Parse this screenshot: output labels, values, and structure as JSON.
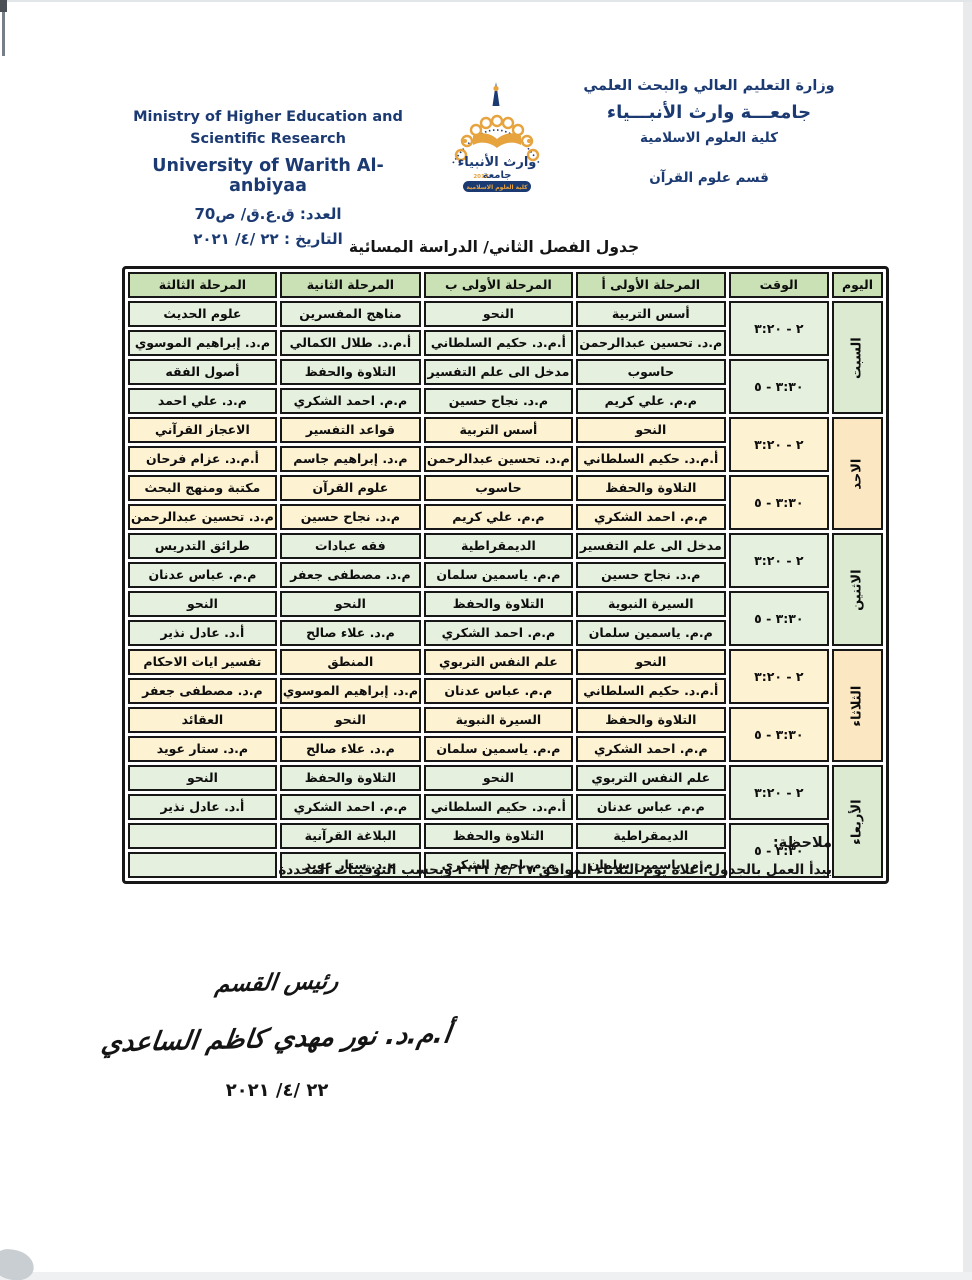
{
  "palette": {
    "navy": "#1c3a72",
    "gold": "#e6a33e",
    "border": "#171717",
    "green_header": "#c9e1b4",
    "green_cell": "#e6f0de",
    "green_day": "#dcead2",
    "cream_cell": "#fdf2d2",
    "cream_day": "#fbe8c2"
  },
  "header": {
    "ministry_ar": "وزارة التعليم العالي والبحث العلمي",
    "university_ar": "جامعـــة وارث الأنبـــياء",
    "college_ar": "كلية العلوم الاسلامية",
    "department_ar": "قسم علوم القرآن",
    "ministry_en_line1": "Ministry of Higher Education and",
    "ministry_en_line2": "Scientific Research",
    "university_en": "University of Warith Al- anbiyaa",
    "number_line": "العدد: ق.ع.ق/ ص70",
    "date_line": "التاريخ : ٢٢ /٤/ ٢٠٢١"
  },
  "logo": {
    "name_ar": "وارث الأنبياء",
    "word_university": "جامعة",
    "year": "2017",
    "ribbon": "كلية العلوم الاسلامية"
  },
  "title": "جدول الفصل الثاني/ الدراسة المسائية",
  "table": {
    "headers": [
      "اليوم",
      "الوقت",
      "المرحلة الأولى أ",
      "المرحلة الأولى ب",
      "المرحلة الثانية",
      "المرحلة الثالثة"
    ],
    "days": [
      {
        "name": "السبت",
        "tone": "g",
        "slots": [
          {
            "time": "٢ - ٣:٢٠",
            "cells": [
              {
                "subject": "أسس التربية",
                "teacher": "م.د. تحسين عبدالرحمن"
              },
              {
                "subject": "النحو",
                "teacher": "أ.م.د. حكيم السلطاني"
              },
              {
                "subject": "مناهج المفسرين",
                "teacher": "أ.م.د. طلال الكمالي"
              },
              {
                "subject": "علوم الحديث",
                "teacher": "م.د. إبراهيم الموسوي"
              }
            ]
          },
          {
            "time": "٣:٣٠ - ٥",
            "cells": [
              {
                "subject": "حاسوب",
                "teacher": "م.م. علي كريم"
              },
              {
                "subject": "مدخل الى علم التفسير",
                "teacher": "م.د. نجاح حسين"
              },
              {
                "subject": "التلاوة والحفظ",
                "teacher": "م.م. احمد الشكري"
              },
              {
                "subject": "أصول الفقه",
                "teacher": "م.د. علي احمد"
              }
            ]
          }
        ]
      },
      {
        "name": "الاحد",
        "tone": "c",
        "slots": [
          {
            "time": "٢ - ٣:٢٠",
            "cells": [
              {
                "subject": "النحو",
                "teacher": "أ.م.د. حكيم السلطاني"
              },
              {
                "subject": "أسس التربية",
                "teacher": "م.د. تحسين عبدالرحمن"
              },
              {
                "subject": "قواعد التفسير",
                "teacher": "م.د. إبراهيم جاسم"
              },
              {
                "subject": "الاعجاز القرآني",
                "teacher": "أ.م.د. عزام فرحان"
              }
            ]
          },
          {
            "time": "٣:٣٠ - ٥",
            "cells": [
              {
                "subject": "التلاوة والحفظ",
                "teacher": "م.م. احمد الشكري"
              },
              {
                "subject": "حاسوب",
                "teacher": "م.م. علي كريم"
              },
              {
                "subject": "علوم القرآن",
                "teacher": "م.د. نجاح حسين"
              },
              {
                "subject": "مكتبة ومنهج البحث",
                "teacher": "م.د. تحسين عبدالرحمن"
              }
            ]
          }
        ]
      },
      {
        "name": "الاثنين",
        "tone": "g",
        "slots": [
          {
            "time": "٢ - ٣:٢٠",
            "cells": [
              {
                "subject": "مدخل الى علم التفسير",
                "teacher": "م.د. نجاح حسين"
              },
              {
                "subject": "الديمقراطية",
                "teacher": "م.م. ياسمين سلمان"
              },
              {
                "subject": "فقه عبادات",
                "teacher": "م.د. مصطفى جعفر"
              },
              {
                "subject": "طرائق التدريس",
                "teacher": "م.م. عباس عدنان"
              }
            ]
          },
          {
            "time": "٣:٣٠ - ٥",
            "cells": [
              {
                "subject": "السيرة النبوية",
                "teacher": "م.م. ياسمين سلمان"
              },
              {
                "subject": "التلاوة والحفظ",
                "teacher": "م.م. احمد الشكري"
              },
              {
                "subject": "النحو",
                "teacher": "م.د. علاء صالح"
              },
              {
                "subject": "النحو",
                "teacher": "أ.د. عادل نذير"
              }
            ]
          }
        ]
      },
      {
        "name": "الثلاثاء",
        "tone": "c",
        "slots": [
          {
            "time": "٢ - ٣:٢٠",
            "cells": [
              {
                "subject": "النحو",
                "teacher": "أ.م.د. حكيم السلطاني"
              },
              {
                "subject": "علم النفس التربوي",
                "teacher": "م.م. عباس عدنان"
              },
              {
                "subject": "المنطق",
                "teacher": "م.د. إبراهيم الموسوي"
              },
              {
                "subject": "تفسير ايات الاحكام",
                "teacher": "م.د. مصطفى جعفر"
              }
            ]
          },
          {
            "time": "٣:٣٠ - ٥",
            "cells": [
              {
                "subject": "التلاوة والحفظ",
                "teacher": "م.م. احمد الشكري"
              },
              {
                "subject": "السيرة النبوية",
                "teacher": "م.م. ياسمين سلمان"
              },
              {
                "subject": "النحو",
                "teacher": "م.د. علاء صالح"
              },
              {
                "subject": "العقائد",
                "teacher": "م.د. ستار عويد"
              }
            ]
          }
        ]
      },
      {
        "name": "الأربعاء",
        "tone": "g",
        "slots": [
          {
            "time": "٢ - ٣:٢٠",
            "cells": [
              {
                "subject": "علم النفس التربوي",
                "teacher": "م.م. عباس عدنان"
              },
              {
                "subject": "النحو",
                "teacher": "أ.م.د. حكيم السلطاني"
              },
              {
                "subject": "التلاوة والحفظ",
                "teacher": "م.م. احمد الشكري"
              },
              {
                "subject": "النحو",
                "teacher": "أ.د. عادل نذير"
              }
            ]
          },
          {
            "time": "٣:٣٠ - ٥",
            "cells": [
              {
                "subject": "الديمقراطية",
                "teacher": "م.م. ياسمين سلمان"
              },
              {
                "subject": "التلاوة والحفظ",
                "teacher": "م.م. احمد الشكري"
              },
              {
                "subject": "البلاغة القرآنية",
                "teacher": "م.د. ستار عويد"
              },
              {
                "subject": "",
                "teacher": ""
              }
            ]
          }
        ]
      }
    ]
  },
  "note": {
    "label": "ملاحظة:",
    "text": "يبدأ العمل بالجدول أعلاه يوم الثلاثاء الموافق ٢٧ /٤/ ٢٠٢١ وبحسب التوقيتات المحددة"
  },
  "signature": {
    "title": "رئيس القسم",
    "name": "أ.م.د. نور مهدي كاظم الساعدي",
    "date": "٢٢ /٤/ ٢٠٢١"
  }
}
